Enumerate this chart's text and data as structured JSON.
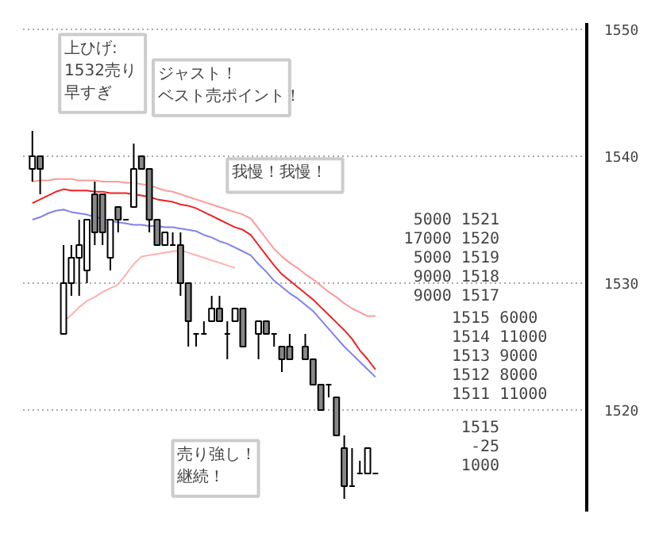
{
  "chart_data": {
    "type": "candlestick",
    "categories": [
      null,
      null,
      null,
      null,
      null,
      null,
      null,
      null,
      null,
      null,
      null,
      null,
      null,
      null,
      null,
      null,
      null,
      null,
      null,
      null,
      null,
      null,
      null,
      null,
      null,
      null,
      null,
      null,
      null,
      null,
      null,
      null,
      null,
      null,
      null,
      null,
      null,
      null,
      null,
      null,
      null,
      null,
      null,
      null,
      null
    ],
    "ohlc": [
      [
        1539,
        1542,
        1538,
        1540
      ],
      [
        1540,
        1540,
        1537,
        1539
      ],
      null,
      null,
      [
        1526,
        1533,
        1526,
        1530
      ],
      [
        1530,
        1533,
        1529,
        1532
      ],
      [
        1532,
        1535,
        1529,
        1533
      ],
      [
        1531,
        1535,
        1530,
        1535
      ],
      [
        1537,
        1538,
        1533,
        1534
      ],
      [
        1537,
        1537,
        1533,
        1534
      ],
      [
        1532,
        1535,
        1531,
        1535
      ],
      [
        1536,
        1536,
        1534,
        1535
      ],
      [
        1535,
        1535,
        1535,
        1535
      ],
      [
        1536,
        1541,
        1536,
        1539
      ],
      [
        1540,
        1540,
        1539,
        1539
      ],
      [
        1539,
        1539,
        1534,
        1535
      ],
      [
        1535,
        1535,
        1533,
        1533
      ],
      [
        1533,
        1534,
        1533,
        1534
      ],
      [
        1533,
        1534,
        1533,
        1533
      ],
      [
        1533,
        1534,
        1529,
        1530
      ],
      [
        1530,
        1530,
        1525,
        1527
      ],
      [
        1526,
        1526,
        1525,
        1526
      ],
      [
        1526,
        1527,
        1526,
        1526
      ],
      [
        1527,
        1529,
        1527,
        1528
      ],
      [
        1528,
        1529,
        1527,
        1527
      ],
      [
        1526,
        1527,
        1524,
        1526
      ],
      [
        1527,
        1528,
        1527,
        1528
      ],
      [
        1528,
        1528,
        1525,
        1525
      ],
      null,
      [
        1526,
        1527,
        1524,
        1527
      ],
      [
        1527,
        1527,
        1526,
        1526
      ],
      [
        1526,
        1526,
        1525,
        1526
      ],
      [
        1525,
        1525,
        1523,
        1524
      ],
      [
        1525,
        1526,
        1524,
        1524
      ],
      null,
      [
        1525,
        1526,
        1524,
        1524
      ],
      [
        1524,
        1524,
        1522,
        1522
      ],
      [
        1522,
        1522,
        1520,
        1520
      ],
      [
        1522,
        1522,
        1521,
        1522
      ],
      [
        1521,
        1521,
        1518,
        1518
      ],
      [
        1517,
        1518,
        1513,
        1514
      ],
      [
        1514,
        1517,
        1514,
        1514
      ],
      [
        1515,
        1516,
        1515,
        1515
      ],
      [
        1515,
        1517,
        1515,
        1517
      ],
      [
        1515,
        1515,
        1515,
        1515
      ]
    ],
    "series": [
      {
        "type": "line",
        "color": "#ff9999",
        "values": [
          1538.0,
          1538.1,
          1538.1,
          1538.2,
          1538.2,
          1538.2,
          1538.1,
          1538.1,
          1538.1,
          1538.0,
          1538.0,
          1538.0,
          1537.9,
          1537.9,
          1537.8,
          1537.7,
          1537.5,
          1537.3,
          1537.2,
          1537.0,
          1536.8,
          1536.6,
          1536.4,
          1536.2,
          1536.0,
          1535.8,
          1535.6,
          1535.4,
          1535.1,
          1534.3,
          1533.5,
          1532.7,
          1532.1,
          1531.6,
          1531.2,
          1530.7,
          1530.3,
          1529.8,
          1529.3,
          1528.9,
          1528.4,
          1528.0,
          1527.7,
          1527.4,
          1527.4
        ]
      },
      {
        "type": "line",
        "color": "#ee2222",
        "values": [
          1536.3,
          1536.6,
          1536.9,
          1537.2,
          1537.4,
          1537.3,
          1537.3,
          1537.3,
          1537.2,
          1537.2,
          1537.1,
          1537.1,
          1537.1,
          1537.0,
          1536.9,
          1536.8,
          1536.6,
          1536.5,
          1536.4,
          1536.2,
          1536.1,
          1535.9,
          1535.6,
          1535.3,
          1535.0,
          1534.7,
          1534.4,
          1534.2,
          1533.8,
          1533.0,
          1532.2,
          1531.4,
          1530.7,
          1530.2,
          1529.7,
          1529.2,
          1528.7,
          1528.1,
          1527.5,
          1526.9,
          1526.3,
          1525.6,
          1524.7,
          1524.0,
          1523.2
        ]
      },
      {
        "type": "line",
        "color": "#8080ee",
        "values": [
          1535.0,
          1535.2,
          1535.5,
          1535.7,
          1535.8,
          1535.6,
          1535.5,
          1535.4,
          1535.2,
          1535.1,
          1534.9,
          1534.8,
          1534.7,
          1534.6,
          1534.6,
          1534.5,
          1534.5,
          1534.4,
          1534.4,
          1534.3,
          1534.2,
          1534.1,
          1533.8,
          1533.6,
          1533.3,
          1533.1,
          1532.8,
          1532.5,
          1532.2,
          1531.5,
          1530.9,
          1530.2,
          1529.7,
          1529.2,
          1528.8,
          1528.3,
          1527.8,
          1527.1,
          1526.4,
          1525.7,
          1525.0,
          1524.4,
          1523.8,
          1523.2,
          1522.6
        ]
      },
      {
        "type": "line",
        "color": "#ffb0b0",
        "values": [
          null,
          null,
          null,
          null,
          1527.0,
          1527.5,
          1528.1,
          1528.6,
          1528.9,
          1529.3,
          1529.6,
          1529.9,
          1530.7,
          1531.5,
          1532.1,
          1532.2,
          1532.3,
          1532.4,
          1532.5,
          1532.6,
          1532.4,
          1532.2,
          1532.0,
          1531.8,
          1531.6,
          1531.4,
          1531.2,
          null,
          null,
          null,
          null,
          null,
          null,
          null,
          null,
          null,
          null,
          null,
          null,
          null,
          null,
          null,
          null,
          null,
          null
        ]
      }
    ],
    "ylim": [
      1512,
      1550.5
    ],
    "yticks": [
      1520,
      1530,
      1540,
      1550
    ],
    "grid": "y",
    "tick_labels": "y",
    "annotations": [
      "上ひげ:1532売り早すぎ",
      "ジャスト！ベスト売ポイント！",
      "我慢！我慢！",
      "売り強し！継続！",
      "5000 1521",
      "17000 1520",
      "5000 1519",
      "9000 1518",
      "9000 1517",
      "1515 6000",
      "1514 11000",
      "1513 9000",
      "1512 8000",
      "1511 11000",
      "1515",
      "-25",
      "1000"
    ]
  }
}
